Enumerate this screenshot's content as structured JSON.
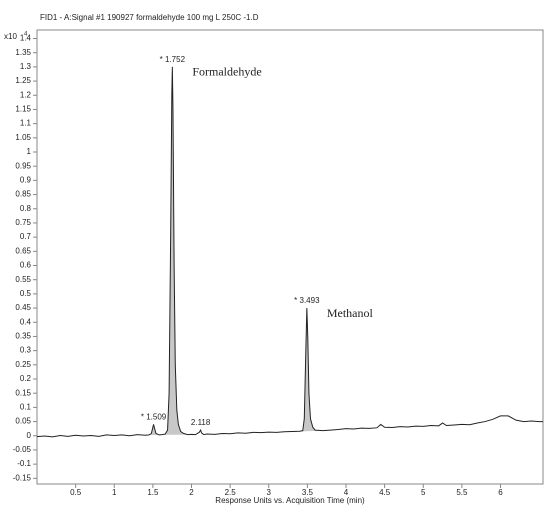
{
  "chart_data": {
    "type": "line",
    "title": "FID1 - A:Signal #1 190927 formaldehyde 100 mg L 250C -1.D",
    "y_unit": "x10",
    "y_unit_exp": "4",
    "xlabel": "Response Units vs. Acquisition Time (min)",
    "xlim": [
      0,
      6.55
    ],
    "ylim": [
      -0.17,
      1.43
    ],
    "xticks": [
      0.5,
      1,
      1.5,
      2,
      2.5,
      3,
      3.5,
      4,
      4.5,
      5,
      5.5,
      6
    ],
    "yticks": [
      -0.15,
      -0.1,
      -0.05,
      0,
      0.05,
      0.1,
      0.15,
      0.2,
      0.25,
      0.3,
      0.35,
      0.4,
      0.45,
      0.5,
      0.55,
      0.6,
      0.65,
      0.7,
      0.75,
      0.8,
      0.85,
      0.9,
      0.95,
      1,
      1.05,
      1.1,
      1.15,
      1.2,
      1.25,
      1.3,
      1.35,
      1.4
    ],
    "color": "#222222",
    "fill": "#c8c8c8",
    "x": [
      0,
      0.1,
      0.2,
      0.3,
      0.4,
      0.5,
      0.6,
      0.7,
      0.8,
      0.9,
      1,
      1.1,
      1.2,
      1.3,
      1.4,
      1.45,
      1.48,
      1.5,
      1.509,
      1.52,
      1.54,
      1.58,
      1.62,
      1.66,
      1.69,
      1.71,
      1.73,
      1.745,
      1.752,
      1.76,
      1.775,
      1.79,
      1.81,
      1.83,
      1.86,
      1.9,
      1.95,
      2,
      2.05,
      2.1,
      2.118,
      2.13,
      2.16,
      2.2,
      2.3,
      2.4,
      2.5,
      2.6,
      2.7,
      2.8,
      2.9,
      3,
      3.1,
      3.2,
      3.3,
      3.4,
      3.44,
      3.46,
      3.48,
      3.493,
      3.505,
      3.52,
      3.54,
      3.57,
      3.6,
      3.7,
      3.8,
      3.9,
      4,
      4.1,
      4.2,
      4.3,
      4.4,
      4.45,
      4.5,
      4.6,
      4.7,
      4.8,
      4.9,
      5,
      5.1,
      5.2,
      5.25,
      5.3,
      5.4,
      5.5,
      5.6,
      5.7,
      5.8,
      5.9,
      6,
      6.1,
      6.2,
      6.3,
      6.4,
      6.5,
      6.55
    ],
    "values": [
      -0.003,
      -0.001,
      -0.004,
      0.001,
      -0.002,
      0.002,
      -0.001,
      0.001,
      -0.002,
      0.003,
      0.001,
      0.003,
      0,
      0.004,
      0.002,
      0.003,
      0.008,
      0.03,
      0.04,
      0.028,
      0.008,
      0.003,
      0.004,
      0.006,
      0.02,
      0.15,
      0.7,
      1.2,
      1.3,
      1.15,
      0.6,
      0.25,
      0.09,
      0.04,
      0.015,
      0.008,
      0.004,
      0.005,
      0.004,
      0.012,
      0.02,
      0.01,
      0.004,
      0.006,
      0.005,
      0.008,
      0.007,
      0.01,
      0.009,
      0.012,
      0.011,
      0.013,
      0.012,
      0.014,
      0.015,
      0.016,
      0.018,
      0.06,
      0.3,
      0.45,
      0.35,
      0.15,
      0.06,
      0.03,
      0.02,
      0.018,
      0.02,
      0.022,
      0.025,
      0.024,
      0.027,
      0.026,
      0.028,
      0.04,
      0.03,
      0.029,
      0.032,
      0.031,
      0.034,
      0.033,
      0.036,
      0.035,
      0.045,
      0.036,
      0.038,
      0.04,
      0.039,
      0.045,
      0.05,
      0.058,
      0.07,
      0.07,
      0.055,
      0.05,
      0.052,
      0.05,
      0.05
    ],
    "peaks": [
      {
        "label": "* 1.509",
        "time": 1.509
      },
      {
        "label": "* 1.752",
        "time": 1.752,
        "compound": "Formaldehyde"
      },
      {
        "label": "2.118",
        "time": 2.118
      },
      {
        "label": "* 3.493",
        "time": 3.493,
        "compound": "Methanol"
      }
    ]
  }
}
